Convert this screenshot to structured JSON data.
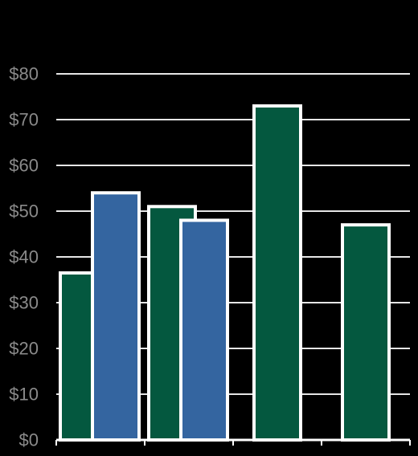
{
  "chart_data": {
    "type": "bar",
    "categories": [
      "",
      "",
      "",
      ""
    ],
    "series": [
      {
        "color": "#04583f",
        "values": [
          36.5,
          51,
          73,
          47
        ]
      },
      {
        "color": "#3465a0",
        "values": [
          54,
          48,
          null,
          null
        ]
      }
    ],
    "ylim": [
      0,
      80
    ],
    "y_ticks": [
      0,
      10,
      20,
      30,
      40,
      50,
      60,
      70,
      80
    ],
    "y_tick_labels": [
      "$0",
      "$10",
      "$20",
      "$30",
      "$40",
      "$50",
      "$60",
      "$70",
      "$80"
    ],
    "grid": true,
    "grid_color": "#e6e6e6",
    "axis_color": "#ffffff",
    "background": "#000000",
    "title": "",
    "xlabel": "",
    "ylabel": ""
  }
}
